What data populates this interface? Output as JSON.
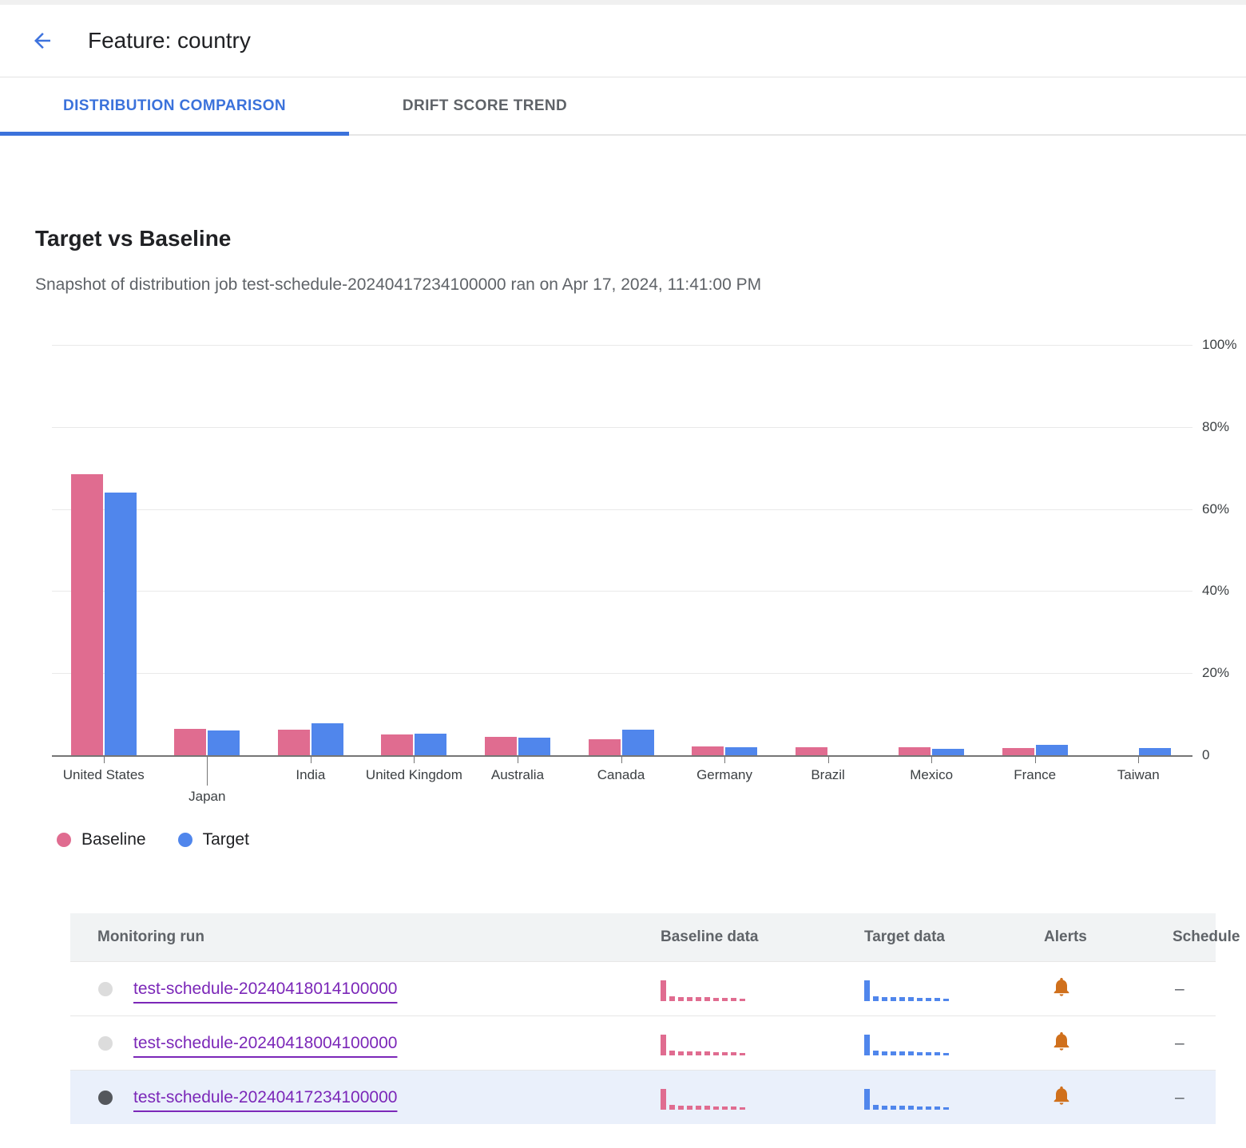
{
  "header": {
    "title": "Feature: country",
    "back_icon": "arrow-back-icon"
  },
  "tabs": [
    {
      "label": "DISTRIBUTION COMPARISON",
      "active": true
    },
    {
      "label": "DRIFT SCORE TREND",
      "active": false
    }
  ],
  "section": {
    "title": "Target vs Baseline",
    "subtitle": "Snapshot of distribution job test-schedule-20240417234100000 ran on Apr 17, 2024, 11:41:00 PM"
  },
  "chart_data": {
    "type": "bar",
    "title": "Target vs Baseline distribution comparison",
    "categories": [
      "United States",
      "Japan",
      "India",
      "United Kingdom",
      "Australia",
      "Canada",
      "Germany",
      "Brazil",
      "Mexico",
      "France",
      "Taiwan"
    ],
    "series": [
      {
        "name": "Baseline",
        "color": "#E06C90",
        "values": [
          68.5,
          6.5,
          6.3,
          5.0,
          4.5,
          3.8,
          2.2,
          2.0,
          2.0,
          1.8,
          0
        ]
      },
      {
        "name": "Target",
        "color": "#5086EC",
        "values": [
          64.0,
          6.1,
          7.8,
          5.3,
          4.2,
          6.3,
          2.0,
          0,
          1.5,
          2.5,
          1.8
        ]
      }
    ],
    "xlabel": "",
    "ylabel": "",
    "ylim": [
      0,
      100
    ],
    "y_ticks": [
      {
        "label": "0",
        "value": 0
      },
      {
        "label": "20%",
        "value": 20
      },
      {
        "label": "40%",
        "value": 40
      },
      {
        "label": "60%",
        "value": 60
      },
      {
        "label": "80%",
        "value": 80
      },
      {
        "label": "100%",
        "value": 100
      }
    ],
    "grid": true,
    "legend_position": "bottom",
    "staggered_labels": [
      "Japan"
    ]
  },
  "legend": [
    {
      "label": "Baseline",
      "color": "#E06C90"
    },
    {
      "label": "Target",
      "color": "#5086EC"
    }
  ],
  "table": {
    "columns": [
      "Monitoring run",
      "Baseline data",
      "Target data",
      "Alerts",
      "Schedule"
    ],
    "rows": [
      {
        "name": "test-schedule-20240418014100000",
        "selected": false,
        "alert": "bell",
        "schedule": "–"
      },
      {
        "name": "test-schedule-20240418004100000",
        "selected": false,
        "alert": "bell",
        "schedule": "–"
      },
      {
        "name": "test-schedule-20240417234100000",
        "selected": true,
        "alert": "bell",
        "schedule": "–"
      }
    ],
    "sparkline": [
      100,
      20,
      19,
      18,
      17,
      16,
      15,
      14,
      12,
      10
    ]
  },
  "colors": {
    "accent_blue": "#3B72DB",
    "baseline_pink": "#E06C90",
    "target_blue": "#5086EC",
    "link_purple": "#7B27B8",
    "alert_orange": "#D0701C",
    "selected_row_bg": "#EAF0FB"
  }
}
